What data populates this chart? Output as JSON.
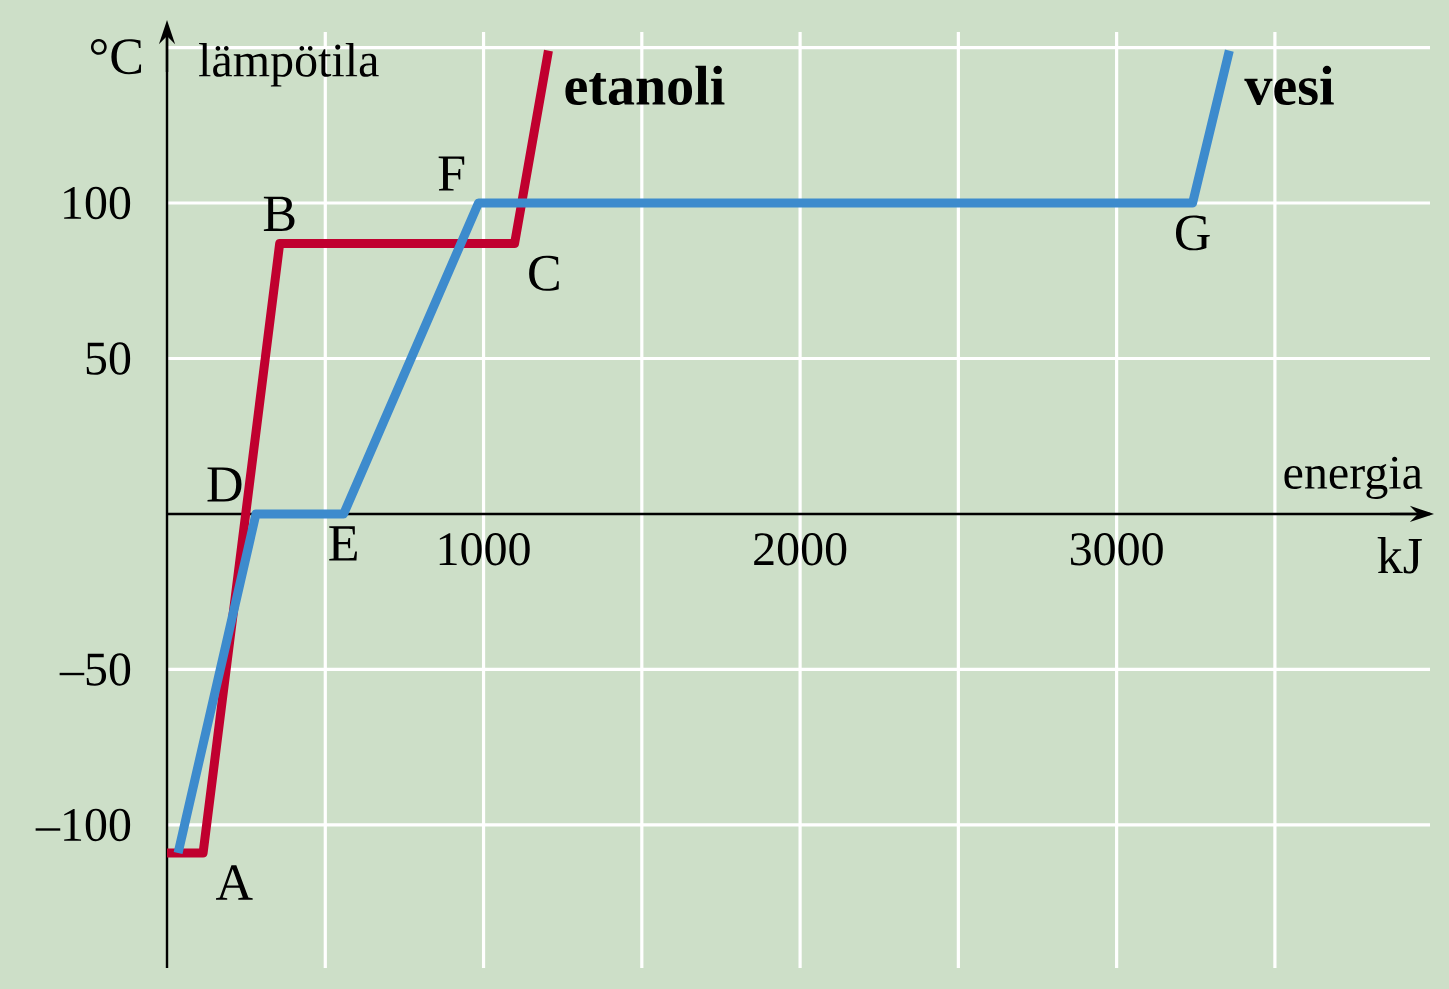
{
  "chart_data": {
    "type": "line",
    "xlabel": "energia",
    "ylabel": "lämpötila",
    "xlim": [
      0,
      3990
    ],
    "ylim": [
      -146,
      155
    ],
    "xticks": [
      {
        "value": 500,
        "label": null
      },
      1000,
      {
        "value": 1500,
        "label": null
      },
      2000,
      {
        "value": 2500,
        "label": null
      },
      3000,
      {
        "value": 3500,
        "label": null
      }
    ],
    "yticks": [
      {
        "value": -100,
        "label": "–100"
      },
      {
        "value": -50,
        "label": "–50"
      },
      {
        "value": 0,
        "label": null
      },
      50,
      100,
      {
        "value": 150,
        "label": null
      }
    ],
    "grid": true,
    "series": [
      {
        "name": "etanoli",
        "color": "#c0002f",
        "x": [
          0,
          114,
          356,
          1098,
          1205
        ],
        "values": [
          -109,
          -109,
          87,
          87,
          149
        ]
      },
      {
        "name": "vesi",
        "color": "#3d8bcd",
        "x": [
          35,
          281,
          558,
          984,
          3240,
          3356
        ],
        "values": [
          -109,
          0,
          0,
          100,
          100,
          149
        ]
      }
    ],
    "annotations": [
      "°C",
      {
        "text": "A",
        "x": 114,
        "y": -109
      },
      {
        "text": "B",
        "x": 356,
        "y": 87
      },
      {
        "text": "C",
        "x": 1098,
        "y": 87
      },
      {
        "text": "D",
        "x": 281,
        "y": 0
      },
      {
        "text": "E",
        "x": 558,
        "y": 0
      },
      {
        "text": "F",
        "x": 984,
        "y": 100
      },
      {
        "text": "G",
        "x": 3240,
        "y": 100
      },
      "kJ"
    ]
  }
}
